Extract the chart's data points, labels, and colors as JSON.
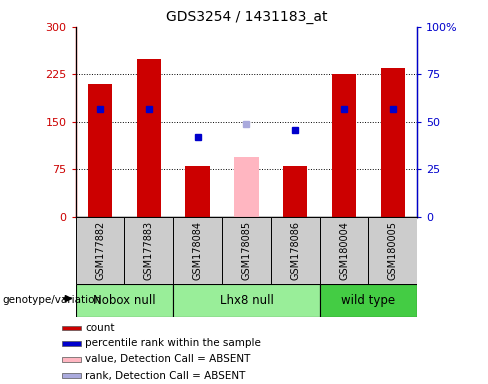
{
  "title": "GDS3254 / 1431183_at",
  "samples": [
    "GSM177882",
    "GSM177883",
    "GSM178084",
    "GSM178085",
    "GSM178086",
    "GSM180004",
    "GSM180005"
  ],
  "count_values": [
    210,
    250,
    80,
    null,
    80,
    225,
    235
  ],
  "rank_values": [
    57,
    57,
    42,
    null,
    46,
    57,
    57
  ],
  "absent_value": [
    null,
    null,
    null,
    95,
    null,
    null,
    null
  ],
  "absent_rank": [
    null,
    null,
    null,
    49,
    null,
    null,
    null
  ],
  "ylim_left": [
    0,
    300
  ],
  "ylim_right": [
    0,
    100
  ],
  "yticks_left": [
    0,
    75,
    150,
    225,
    300
  ],
  "yticks_right": [
    0,
    25,
    50,
    75,
    100
  ],
  "ytick_labels_left": [
    "0",
    "75",
    "150",
    "225",
    "300"
  ],
  "ytick_labels_right": [
    "0",
    "25",
    "50",
    "75",
    "100%"
  ],
  "bar_color": "#CC0000",
  "absent_bar_color": "#FFB6C1",
  "rank_color": "#0000CC",
  "absent_rank_color": "#AAAADD",
  "groups_def": [
    {
      "indices": [
        0,
        1
      ],
      "label": "Nobox null",
      "color": "#99EE99"
    },
    {
      "indices": [
        2,
        3,
        4
      ],
      "label": "Lhx8 null",
      "color": "#99EE99"
    },
    {
      "indices": [
        5,
        6
      ],
      "label": "wild type",
      "color": "#44CC44"
    }
  ],
  "legend_items": [
    {
      "label": "count",
      "color": "#CC0000"
    },
    {
      "label": "percentile rank within the sample",
      "color": "#0000CC"
    },
    {
      "label": "value, Detection Call = ABSENT",
      "color": "#FFB6C1"
    },
    {
      "label": "rank, Detection Call = ABSENT",
      "color": "#AAAADD"
    }
  ]
}
